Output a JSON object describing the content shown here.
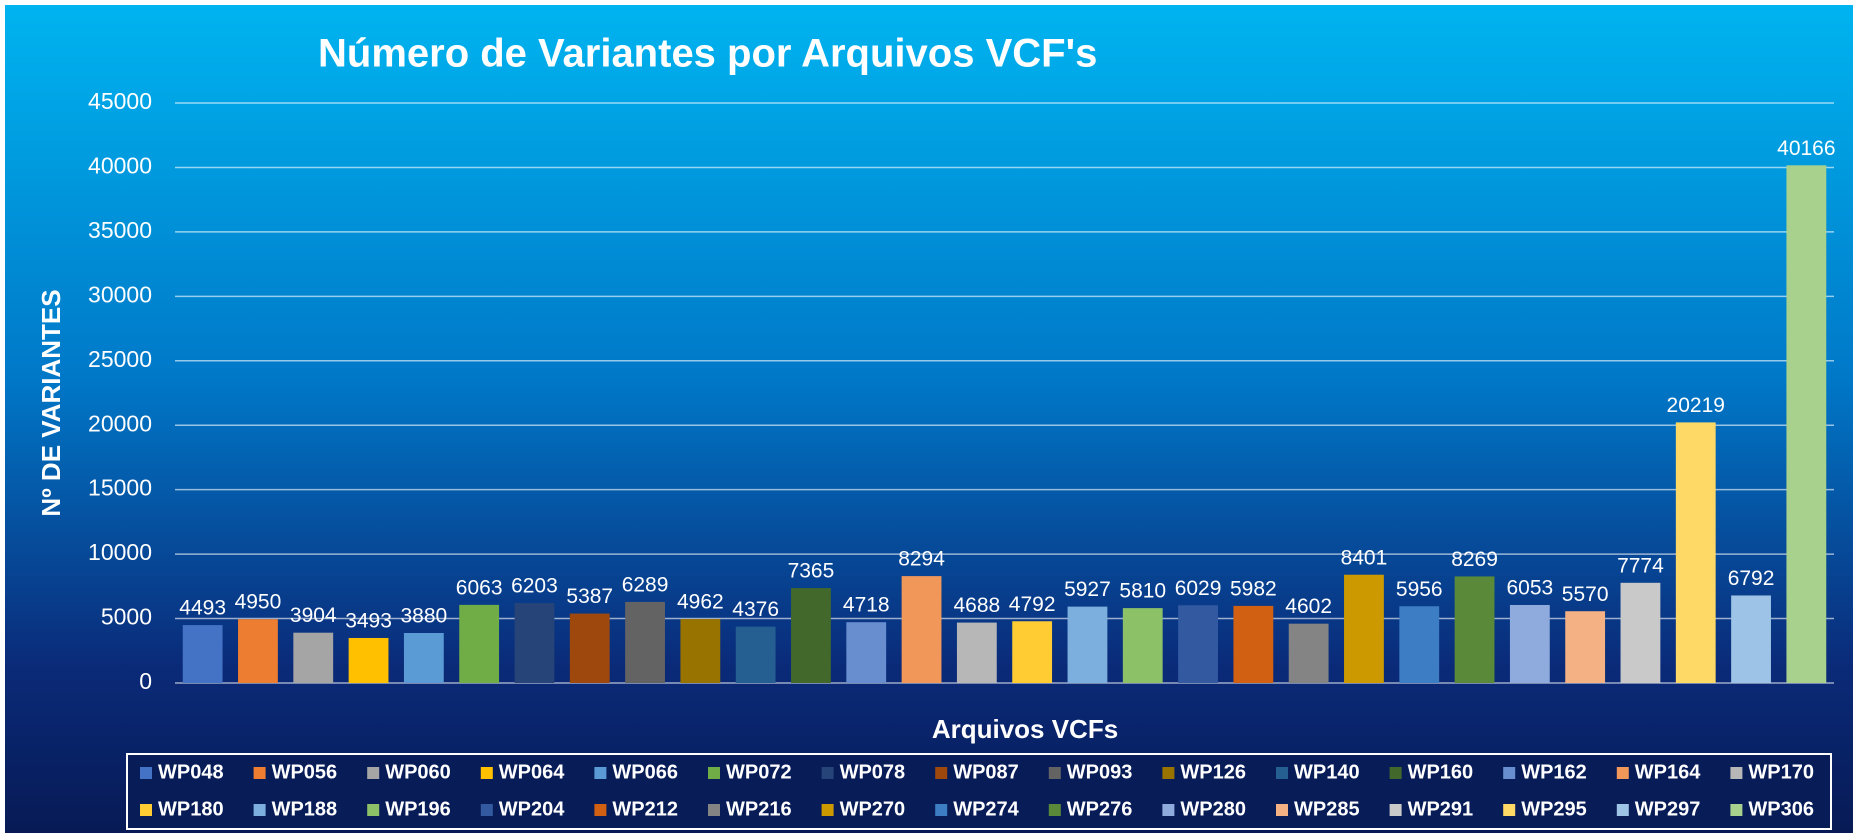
{
  "chart_data": {
    "type": "bar",
    "title": "Número de Variantes por Arquivos VCF's",
    "y_label": "Nº DE VARIANTES",
    "x_label": "Arquivos VCFs",
    "ylim": [
      0,
      45000
    ],
    "yticks": [
      0,
      5000,
      10000,
      15000,
      20000,
      25000,
      30000,
      35000,
      40000,
      45000
    ],
    "grid": true,
    "legend": "bottom",
    "series": [
      {
        "name": "WP048",
        "color": "#4472c4",
        "values": [
          4493
        ]
      },
      {
        "name": "WP056",
        "color": "#ed7d31",
        "values": [
          4950
        ]
      },
      {
        "name": "WP060",
        "color": "#a5a5a5",
        "values": [
          3904
        ]
      },
      {
        "name": "WP064",
        "color": "#ffc000",
        "values": [
          3493
        ]
      },
      {
        "name": "WP066",
        "color": "#5b9bd5",
        "values": [
          3880
        ]
      },
      {
        "name": "WP072",
        "color": "#70ad47",
        "values": [
          6063
        ]
      },
      {
        "name": "WP078",
        "color": "#264478",
        "values": [
          6203
        ]
      },
      {
        "name": "WP087",
        "color": "#9e480e",
        "values": [
          5387
        ]
      },
      {
        "name": "WP093",
        "color": "#636363",
        "values": [
          6289
        ]
      },
      {
        "name": "WP126",
        "color": "#997300",
        "values": [
          4962
        ]
      },
      {
        "name": "WP140",
        "color": "#255e91",
        "values": [
          4376
        ]
      },
      {
        "name": "WP160",
        "color": "#43682b",
        "values": [
          7365
        ]
      },
      {
        "name": "WP162",
        "color": "#698ed0",
        "values": [
          4718
        ]
      },
      {
        "name": "WP164",
        "color": "#f1975a",
        "values": [
          8294
        ]
      },
      {
        "name": "WP170",
        "color": "#b7b7b7",
        "values": [
          4688
        ]
      },
      {
        "name": "WP180",
        "color": "#ffcd33",
        "values": [
          4792
        ]
      },
      {
        "name": "WP188",
        "color": "#7cafdd",
        "values": [
          5927
        ]
      },
      {
        "name": "WP196",
        "color": "#8cc168",
        "values": [
          5810
        ]
      },
      {
        "name": "WP204",
        "color": "#335aa1",
        "values": [
          6029
        ]
      },
      {
        "name": "WP212",
        "color": "#d26012",
        "values": [
          5982
        ]
      },
      {
        "name": "WP216",
        "color": "#848484",
        "values": [
          4602
        ]
      },
      {
        "name": "WP270",
        "color": "#cc9a00",
        "values": [
          8401
        ]
      },
      {
        "name": "WP274",
        "color": "#3c7dc4",
        "values": [
          5956
        ]
      },
      {
        "name": "WP276",
        "color": "#5a8a39",
        "values": [
          8269
        ]
      },
      {
        "name": "WP280",
        "color": "#8faadc",
        "values": [
          6053
        ]
      },
      {
        "name": "WP285",
        "color": "#f4b183",
        "values": [
          5570
        ]
      },
      {
        "name": "WP291",
        "color": "#c9c9c9",
        "values": [
          7774
        ]
      },
      {
        "name": "WP295",
        "color": "#ffd966",
        "values": [
          20219
        ]
      },
      {
        "name": "WP297",
        "color": "#9dc3e6",
        "values": [
          6792
        ]
      },
      {
        "name": "WP306",
        "color": "#a9d18e",
        "values": [
          40166
        ]
      }
    ]
  }
}
